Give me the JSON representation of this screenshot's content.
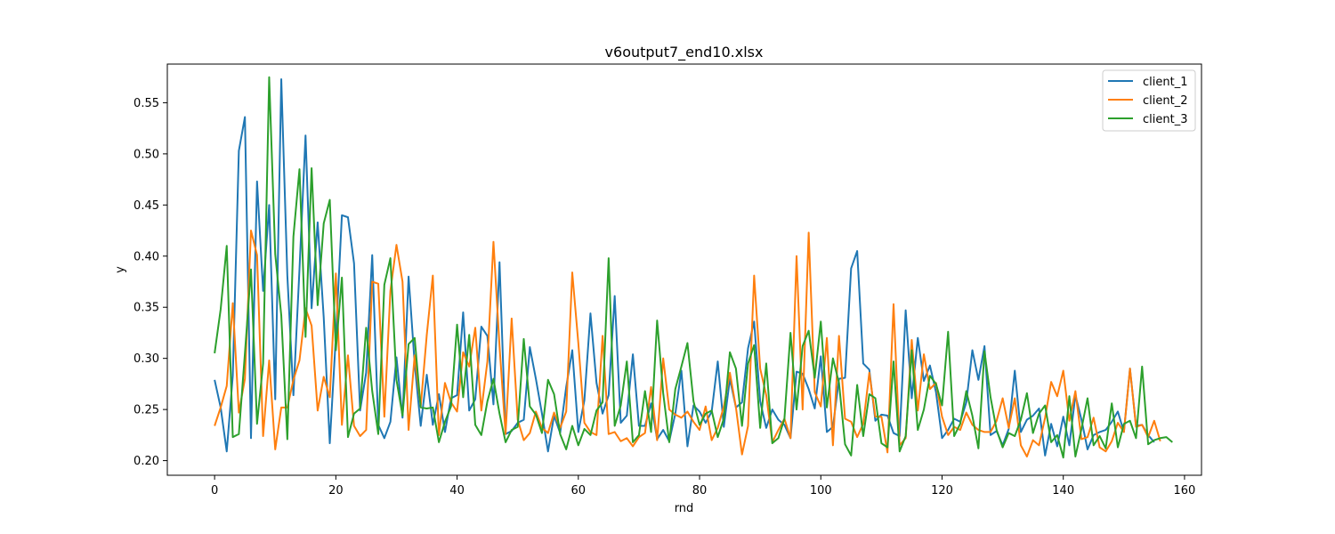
{
  "chart_data": {
    "type": "line",
    "title": "v6output7_end10.xlsx",
    "xlabel": "rnd",
    "ylabel": "y",
    "xlim": [
      -7.8,
      162.8
    ],
    "ylim": [
      0.1857,
      0.5878
    ],
    "xticks": [
      0,
      20,
      40,
      60,
      80,
      100,
      120,
      140,
      160
    ],
    "yticks": [
      0.2,
      0.25,
      0.3,
      0.35,
      0.4,
      0.45,
      0.5,
      0.55
    ],
    "grid": false,
    "legend": "top-right",
    "series": [
      {
        "name": "client_1",
        "color": "#1f77b4",
        "values": [
          0.279,
          0.252,
          0.209,
          0.283,
          0.503,
          0.536,
          0.222,
          0.473,
          0.366,
          0.45,
          0.26,
          0.573,
          0.381,
          0.264,
          0.387,
          0.518,
          0.349,
          0.433,
          0.34,
          0.217,
          0.321,
          0.44,
          0.438,
          0.393,
          0.249,
          0.286,
          0.401,
          0.235,
          0.222,
          0.238,
          0.301,
          0.242,
          0.38,
          0.295,
          0.234,
          0.284,
          0.235,
          0.265,
          0.228,
          0.261,
          0.264,
          0.345,
          0.249,
          0.26,
          0.331,
          0.322,
          0.255,
          0.394,
          0.226,
          0.229,
          0.237,
          0.24,
          0.311,
          0.28,
          0.246,
          0.209,
          0.244,
          0.227,
          0.272,
          0.308,
          0.228,
          0.259,
          0.344,
          0.276,
          0.246,
          0.264,
          0.361,
          0.237,
          0.244,
          0.304,
          0.234,
          0.234,
          0.256,
          0.221,
          0.23,
          0.219,
          0.246,
          0.288,
          0.214,
          0.254,
          0.248,
          0.237,
          0.248,
          0.297,
          0.233,
          0.28,
          0.252,
          0.257,
          0.31,
          0.336,
          0.258,
          0.232,
          0.25,
          0.24,
          0.235,
          0.222,
          0.287,
          0.285,
          0.27,
          0.251,
          0.302,
          0.228,
          0.233,
          0.28,
          0.281,
          0.388,
          0.405,
          0.295,
          0.289,
          0.239,
          0.245,
          0.244,
          0.227,
          0.224,
          0.347,
          0.261,
          0.32,
          0.278,
          0.293,
          0.267,
          0.222,
          0.23,
          0.241,
          0.238,
          0.257,
          0.308,
          0.279,
          0.312,
          0.225,
          0.229,
          0.215,
          0.231,
          0.288,
          0.228,
          0.24,
          0.244,
          0.251,
          0.205,
          0.236,
          0.214,
          0.243,
          0.215,
          0.264,
          0.24,
          0.211,
          0.225,
          0.228,
          0.23,
          0.238,
          0.248,
          0.228,
          0.29,
          0.234,
          0.235,
          0.225,
          0.218
        ]
      },
      {
        "name": "client_2",
        "color": "#ff7f0e",
        "values": [
          0.234,
          0.252,
          0.273,
          0.354,
          0.247,
          0.28,
          0.425,
          0.401,
          0.224,
          0.298,
          0.211,
          0.252,
          0.252,
          0.279,
          0.298,
          0.349,
          0.332,
          0.249,
          0.282,
          0.262,
          0.383,
          0.235,
          0.303,
          0.234,
          0.224,
          0.23,
          0.375,
          0.373,
          0.243,
          0.366,
          0.411,
          0.375,
          0.23,
          0.303,
          0.253,
          0.323,
          0.381,
          0.225,
          0.276,
          0.257,
          0.248,
          0.306,
          0.292,
          0.33,
          0.249,
          0.297,
          0.414,
          0.312,
          0.226,
          0.339,
          0.24,
          0.22,
          0.227,
          0.248,
          0.232,
          0.227,
          0.247,
          0.232,
          0.248,
          0.384,
          0.315,
          0.237,
          0.228,
          0.225,
          0.322,
          0.226,
          0.228,
          0.219,
          0.222,
          0.214,
          0.223,
          0.227,
          0.272,
          0.22,
          0.3,
          0.25,
          0.245,
          0.242,
          0.248,
          0.238,
          0.23,
          0.253,
          0.22,
          0.232,
          0.253,
          0.286,
          0.252,
          0.206,
          0.234,
          0.381,
          0.29,
          0.264,
          0.218,
          0.23,
          0.241,
          0.222,
          0.4,
          0.25,
          0.423,
          0.267,
          0.253,
          0.32,
          0.215,
          0.322,
          0.241,
          0.238,
          0.223,
          0.236,
          0.286,
          0.243,
          0.243,
          0.208,
          0.353,
          0.215,
          0.222,
          0.318,
          0.249,
          0.304,
          0.27,
          0.276,
          0.243,
          0.225,
          0.233,
          0.23,
          0.247,
          0.235,
          0.23,
          0.228,
          0.228,
          0.239,
          0.261,
          0.232,
          0.261,
          0.215,
          0.204,
          0.22,
          0.215,
          0.242,
          0.277,
          0.263,
          0.288,
          0.239,
          0.268,
          0.221,
          0.223,
          0.242,
          0.213,
          0.209,
          0.219,
          0.237,
          0.228,
          0.29,
          0.233,
          0.235,
          0.223,
          0.239,
          0.219
        ]
      },
      {
        "name": "client_3",
        "color": "#2ca02c",
        "values": [
          0.305,
          0.348,
          0.41,
          0.223,
          0.226,
          0.305,
          0.387,
          0.236,
          0.295,
          0.575,
          0.402,
          0.342,
          0.221,
          0.419,
          0.485,
          0.321,
          0.486,
          0.352,
          0.432,
          0.455,
          0.308,
          0.379,
          0.223,
          0.246,
          0.251,
          0.33,
          0.268,
          0.226,
          0.372,
          0.398,
          0.279,
          0.244,
          0.314,
          0.32,
          0.252,
          0.251,
          0.252,
          0.218,
          0.238,
          0.253,
          0.333,
          0.262,
          0.323,
          0.235,
          0.225,
          0.258,
          0.28,
          0.246,
          0.218,
          0.23,
          0.233,
          0.319,
          0.253,
          0.245,
          0.227,
          0.279,
          0.265,
          0.226,
          0.211,
          0.234,
          0.215,
          0.231,
          0.225,
          0.249,
          0.257,
          0.398,
          0.234,
          0.254,
          0.297,
          0.218,
          0.225,
          0.268,
          0.228,
          0.337,
          0.266,
          0.218,
          0.27,
          0.292,
          0.315,
          0.258,
          0.235,
          0.246,
          0.249,
          0.223,
          0.241,
          0.306,
          0.29,
          0.234,
          0.295,
          0.313,
          0.232,
          0.295,
          0.217,
          0.222,
          0.241,
          0.325,
          0.25,
          0.312,
          0.327,
          0.281,
          0.336,
          0.252,
          0.3,
          0.276,
          0.216,
          0.205,
          0.274,
          0.224,
          0.265,
          0.261,
          0.217,
          0.213,
          0.297,
          0.209,
          0.224,
          0.308,
          0.23,
          0.25,
          0.283,
          0.275,
          0.254,
          0.326,
          0.224,
          0.236,
          0.268,
          0.244,
          0.212,
          0.307,
          0.262,
          0.23,
          0.213,
          0.227,
          0.224,
          0.24,
          0.266,
          0.227,
          0.246,
          0.254,
          0.218,
          0.225,
          0.203,
          0.263,
          0.204,
          0.231,
          0.261,
          0.215,
          0.224,
          0.212,
          0.256,
          0.213,
          0.236,
          0.239,
          0.222,
          0.292,
          0.216,
          0.22,
          0.222,
          0.223,
          0.218
        ]
      }
    ]
  }
}
